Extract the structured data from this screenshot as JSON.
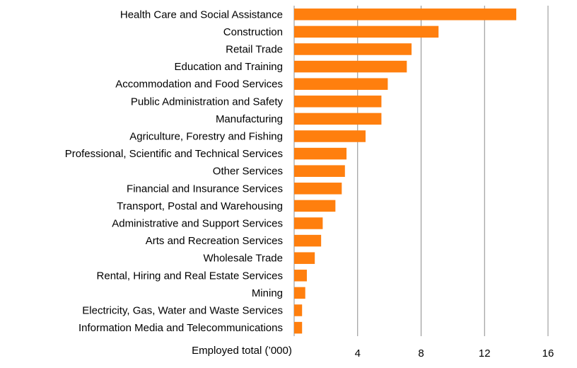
{
  "chart_data": {
    "type": "bar",
    "orientation": "horizontal",
    "xlabel": "Employed total (’000)",
    "xlim": [
      0,
      16
    ],
    "xticks": [
      4,
      8,
      12,
      16
    ],
    "grid": "vertical",
    "bar_color": "#FF7F0E",
    "categories": [
      "Health Care and Social Assistance",
      "Construction",
      "Retail Trade",
      "Education and Training",
      "Accommodation and Food Services",
      "Public Administration and Safety",
      "Manufacturing",
      "Agriculture, Forestry and Fishing",
      "Professional, Scientific and Technical Services",
      "Other Services",
      "Financial and Insurance Services",
      "Transport, Postal and Warehousing",
      "Administrative and Support Services",
      "Arts and Recreation Services",
      "Wholesale Trade",
      "Rental, Hiring and Real Estate Services",
      "Mining",
      "Electricity, Gas, Water and Waste Services",
      "Information Media and Telecommunications"
    ],
    "values": [
      14.0,
      9.1,
      7.4,
      7.1,
      5.9,
      5.5,
      5.5,
      4.5,
      3.3,
      3.2,
      3.0,
      2.6,
      1.8,
      1.7,
      1.3,
      0.8,
      0.7,
      0.5,
      0.5
    ]
  }
}
